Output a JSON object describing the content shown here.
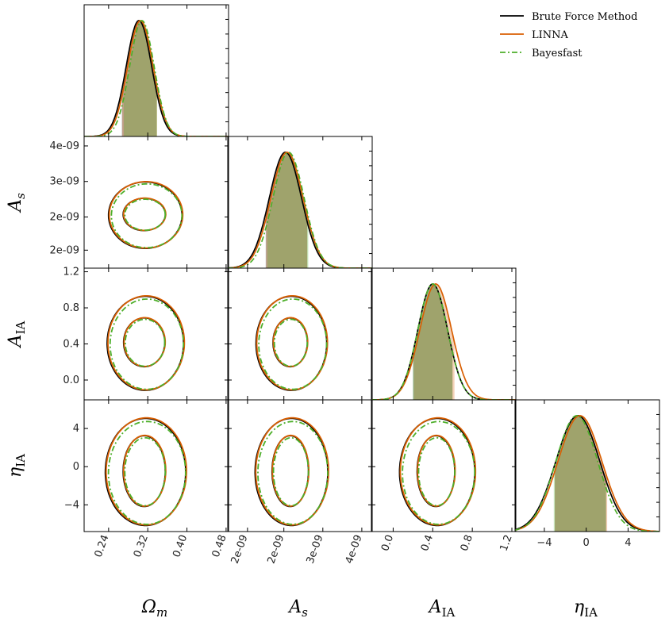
{
  "chart_data": {
    "type": "corner",
    "series": [
      {
        "name": "Brute Force Method",
        "color": "#000000",
        "dash": "solid"
      },
      {
        "name": "LINNA",
        "color": "#d95f02",
        "dash": "solid"
      },
      {
        "name": "Bayesfast",
        "color": "#4daf2a",
        "dash": "dashdot"
      }
    ],
    "params": [
      {
        "label": "Ωm",
        "range": [
          0.19,
          0.485
        ],
        "ticks": [
          0.24,
          0.32,
          0.4,
          0.48
        ],
        "tick_labels": [
          "0.24",
          "0.32",
          "0.40",
          "0.48"
        ],
        "marginal": [
          {
            "mean": 0.302,
            "sd": 0.026,
            "band": [
              0.267,
              0.338
            ]
          },
          {
            "mean": 0.305,
            "sd": 0.026,
            "band": [
              0.268,
              0.339
            ]
          },
          {
            "mean": 0.308,
            "sd": 0.025,
            "band": [
              0.271,
              0.339
            ]
          }
        ]
      },
      {
        "label": "As",
        "range": [
          1.22e-09,
          4e-09
        ],
        "ticks": [
          1.6e-09,
          2.3e-09,
          3.05e-09,
          3.8e-09
        ],
        "tick_labels": [
          "2e-09",
          "2e-09",
          "3e-09",
          "4e-09"
        ],
        "marginal": [
          {
            "mean": 2.33e-09,
            "sd": 3.1e-10,
            "band": [
              1.95e-09,
              2.75e-09
            ]
          },
          {
            "mean": 2.36e-09,
            "sd": 3.1e-10,
            "band": [
              1.96e-09,
              2.75e-09
            ]
          },
          {
            "mean": 2.39e-09,
            "sd": 3e-10,
            "band": [
              1.98e-09,
              2.77e-09
            ]
          }
        ]
      },
      {
        "label": "AIA",
        "range": [
          -0.22,
          1.24
        ],
        "ticks": [
          0.0,
          0.4,
          0.8,
          1.2
        ],
        "tick_labels": [
          "0.0",
          "0.4",
          "0.8",
          "1.2"
        ],
        "y_ticks": [
          0.0,
          0.4,
          0.8,
          1.2
        ],
        "y_tick_labels": [
          "0.0",
          "0.4",
          "0.8",
          "1.2"
        ],
        "marginal": [
          {
            "mean": 0.4,
            "sd": 0.15,
            "band": [
              0.2,
              0.6
            ]
          },
          {
            "mean": 0.43,
            "sd": 0.16,
            "band": [
              0.21,
              0.62
            ]
          },
          {
            "mean": 0.4,
            "sd": 0.15,
            "band": [
              0.2,
              0.6
            ]
          }
        ]
      },
      {
        "label": "ηIA",
        "range": [
          -6.8,
          7.0
        ],
        "ticks": [
          -4,
          0,
          4
        ],
        "tick_labels": [
          "−4",
          "0",
          "4"
        ],
        "y_ticks": [
          -4,
          0,
          4
        ],
        "y_tick_labels": [
          "−4",
          "0",
          "4"
        ],
        "marginal": [
          {
            "mean": -0.8,
            "sd": 2.1,
            "band": [
              -3.0,
              1.9
            ]
          },
          {
            "mean": -0.6,
            "sd": 2.1,
            "band": [
              -3.0,
              2.0
            ]
          },
          {
            "mean": -0.9,
            "sd": 2.0,
            "band": [
              -3.1,
              1.9
            ]
          }
        ]
      }
    ],
    "y_axis_labels": {
      "1": {
        "ticks": [
          1.6e-09,
          2.3e-09,
          3.05e-09,
          3.8e-09
        ],
        "tick_labels": [
          "2e-09",
          "2e-09",
          "3e-09",
          "4e-09"
        ]
      }
    },
    "contours": {
      "1-0": {
        "cx": 0.31,
        "cy": 2.37e-09,
        "rx68": 0.043,
        "ry68": 3.4e-10,
        "rx95": 0.075,
        "ry95": 7e-10
      },
      "2-0": {
        "cx": 0.31,
        "cy": 0.43,
        "rx68": 0.042,
        "ry68": 0.27,
        "rx95": 0.078,
        "ry95": 0.52
      },
      "2-1": {
        "cx": 2.4e-09,
        "cy": 0.43,
        "rx68": 3.3e-10,
        "ry68": 0.27,
        "rx95": 6.8e-10,
        "ry95": 0.52
      },
      "3-0": {
        "cx": 0.31,
        "cy": -0.3,
        "rx68": 0.043,
        "ry68": 3.7,
        "rx95": 0.082,
        "ry95": 5.6
      },
      "3-1": {
        "cx": 2.4e-09,
        "cy": -0.3,
        "rx68": 3.5e-10,
        "ry68": 3.7,
        "rx95": 7e-10,
        "ry95": 5.6
      },
      "3-2": {
        "cx": 0.42,
        "cy": -0.3,
        "rx68": 0.19,
        "ry68": 3.7,
        "rx95": 0.38,
        "ry95": 5.6
      }
    },
    "legend": {
      "position": "top-right"
    },
    "grid": false
  }
}
